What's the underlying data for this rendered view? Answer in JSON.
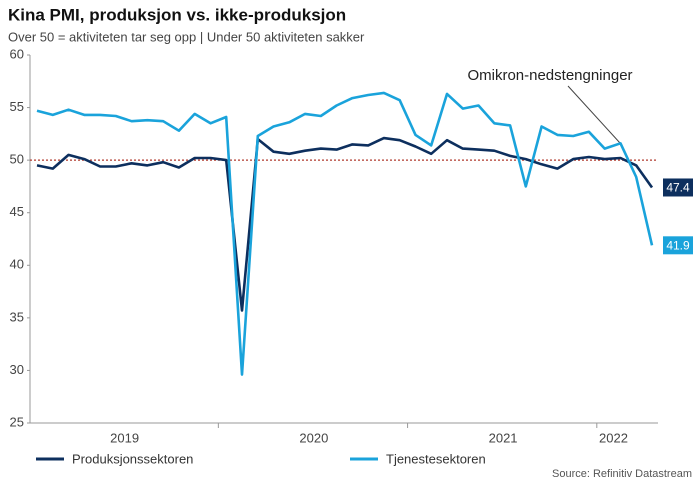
{
  "chart_data": {
    "type": "line",
    "title": "Kina PMI, produksjon vs. ikke-produksjon",
    "subtitle": "Over 50 = aktiviteten tar seg opp | Under 50 aktiviteten sakker",
    "annotation": "Omikron-nedstengninger",
    "source": "Source: Refinitiv Datastream",
    "categories": [
      null,
      null,
      null,
      null,
      null,
      null,
      "2019",
      null,
      null,
      null,
      null,
      null,
      null,
      null,
      null,
      null,
      null,
      null,
      "2020",
      null,
      null,
      null,
      null,
      null,
      null,
      null,
      null,
      null,
      null,
      null,
      "2021",
      null,
      null,
      null,
      null,
      null,
      null,
      "2022",
      null,
      null
    ],
    "ylim": [
      25,
      60
    ],
    "yticks": [
      25,
      30,
      35,
      40,
      45,
      50,
      55,
      60
    ],
    "reference_line": 50,
    "series": [
      {
        "name": "Produksjonssektoren",
        "color": "#0d2f5e",
        "values": [
          49.5,
          49.2,
          50.5,
          50.1,
          49.4,
          49.4,
          49.7,
          49.5,
          49.8,
          49.3,
          50.2,
          50.2,
          50.0,
          35.7,
          52.0,
          50.8,
          50.6,
          50.9,
          51.1,
          51.0,
          51.5,
          51.4,
          52.1,
          51.9,
          51.3,
          50.6,
          51.9,
          51.1,
          51.0,
          50.9,
          50.4,
          50.1,
          49.6,
          49.2,
          50.1,
          50.3,
          50.1,
          50.2,
          49.5,
          47.4
        ],
        "end_label": "47.4"
      },
      {
        "name": "Tjenestesektoren",
        "color": "#1aa3db",
        "values": [
          54.7,
          54.3,
          54.8,
          54.3,
          54.3,
          54.2,
          53.7,
          53.8,
          53.7,
          52.8,
          54.4,
          53.5,
          54.1,
          29.6,
          52.3,
          53.2,
          53.6,
          54.4,
          54.2,
          55.2,
          55.9,
          56.2,
          56.4,
          55.7,
          52.4,
          51.4,
          56.3,
          54.9,
          55.2,
          53.5,
          53.3,
          47.5,
          53.2,
          52.4,
          52.3,
          52.7,
          51.1,
          51.6,
          48.4,
          41.9
        ],
        "end_label": "41.9"
      }
    ]
  }
}
